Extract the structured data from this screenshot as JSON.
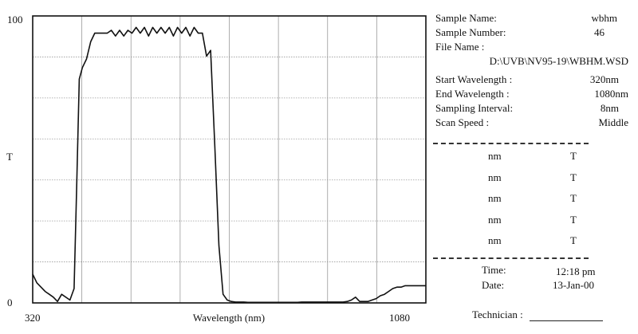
{
  "chart_data": {
    "type": "line",
    "xlabel": "Wavelength (nm)",
    "ylabel": "T",
    "xlim": [
      320,
      1080
    ],
    "ylim": [
      0,
      100
    ],
    "x_tick_labels": [
      "320",
      "1080"
    ],
    "y_tick_labels": [
      "0",
      "100"
    ],
    "grid": true,
    "x_gridlines": 8,
    "y_gridlines": 7,
    "series": [
      {
        "x": [
          320,
          328,
          344,
          352,
          360,
          368,
          376,
          392,
          400,
          405,
          410,
          416,
          424,
          432,
          440,
          448,
          456,
          464,
          472,
          480,
          488,
          496,
          504,
          512,
          520,
          528,
          536,
          544,
          552,
          560,
          568,
          576,
          584,
          592,
          600,
          608,
          616,
          624,
          632,
          640,
          648,
          656,
          664,
          672,
          680,
          688,
          696,
          704,
          712,
          720,
          728,
          736,
          744,
          752,
          760,
          768,
          776,
          784,
          792,
          800,
          808,
          816,
          824,
          832,
          840,
          848,
          856,
          864,
          872,
          880,
          888,
          896,
          904,
          912,
          920,
          928,
          936,
          944,
          952,
          960,
          968,
          976,
          984,
          992,
          1000,
          1008,
          1016,
          1024,
          1032,
          1040,
          1048,
          1056,
          1064,
          1072,
          1080
        ],
        "y": [
          10,
          7,
          4,
          3,
          2,
          0.5,
          3,
          1,
          5,
          40,
          78,
          82,
          85,
          91,
          94,
          94,
          94,
          94,
          95,
          93,
          95,
          93,
          95,
          94,
          96,
          94,
          96,
          93,
          96,
          94,
          96,
          94,
          96,
          93,
          96,
          94,
          96,
          93,
          96,
          94,
          94,
          86,
          88,
          55,
          20,
          3,
          1,
          0.5,
          0.3,
          0.3,
          0.3,
          0.2,
          0.2,
          0.2,
          0.2,
          0.2,
          0.2,
          0.2,
          0.2,
          0.2,
          0.2,
          0.2,
          0.2,
          0.2,
          0.3,
          0.3,
          0.3,
          0.3,
          0.3,
          0.3,
          0.3,
          0.3,
          0.3,
          0.3,
          0.3,
          0.5,
          1,
          2,
          0.5,
          0.5,
          0.5,
          1,
          1.5,
          2.5,
          3,
          4,
          5,
          5.5,
          5.5,
          6,
          6,
          6,
          6,
          6,
          6
        ]
      }
    ]
  },
  "info": {
    "sample_name_label": "Sample Name:",
    "sample_name_value": "wbhm",
    "sample_number_label": "Sample Number:",
    "sample_number_value": "46",
    "file_name_label": "File Name :",
    "file_name_value": "D:\\UVB\\NV95-19\\WBHM.WSD",
    "start_wl_label": "Start Wavelength  :",
    "start_wl_value": "320nm",
    "end_wl_label": "End Wavelength  :",
    "end_wl_value": "1080nm",
    "sampling_label": "Sampling Interval:",
    "sampling_value": "8nm",
    "scan_speed_label": "Scan Speed :",
    "scan_speed_value": "Middle"
  },
  "nm_t_table": {
    "nm_label": "nm",
    "t_label": "T"
  },
  "timestamp": {
    "time_label": "Time:",
    "time_value": "12:18 pm",
    "date_label": "Date:",
    "date_value": "13-Jan-00"
  },
  "technician_label": "Technician :"
}
